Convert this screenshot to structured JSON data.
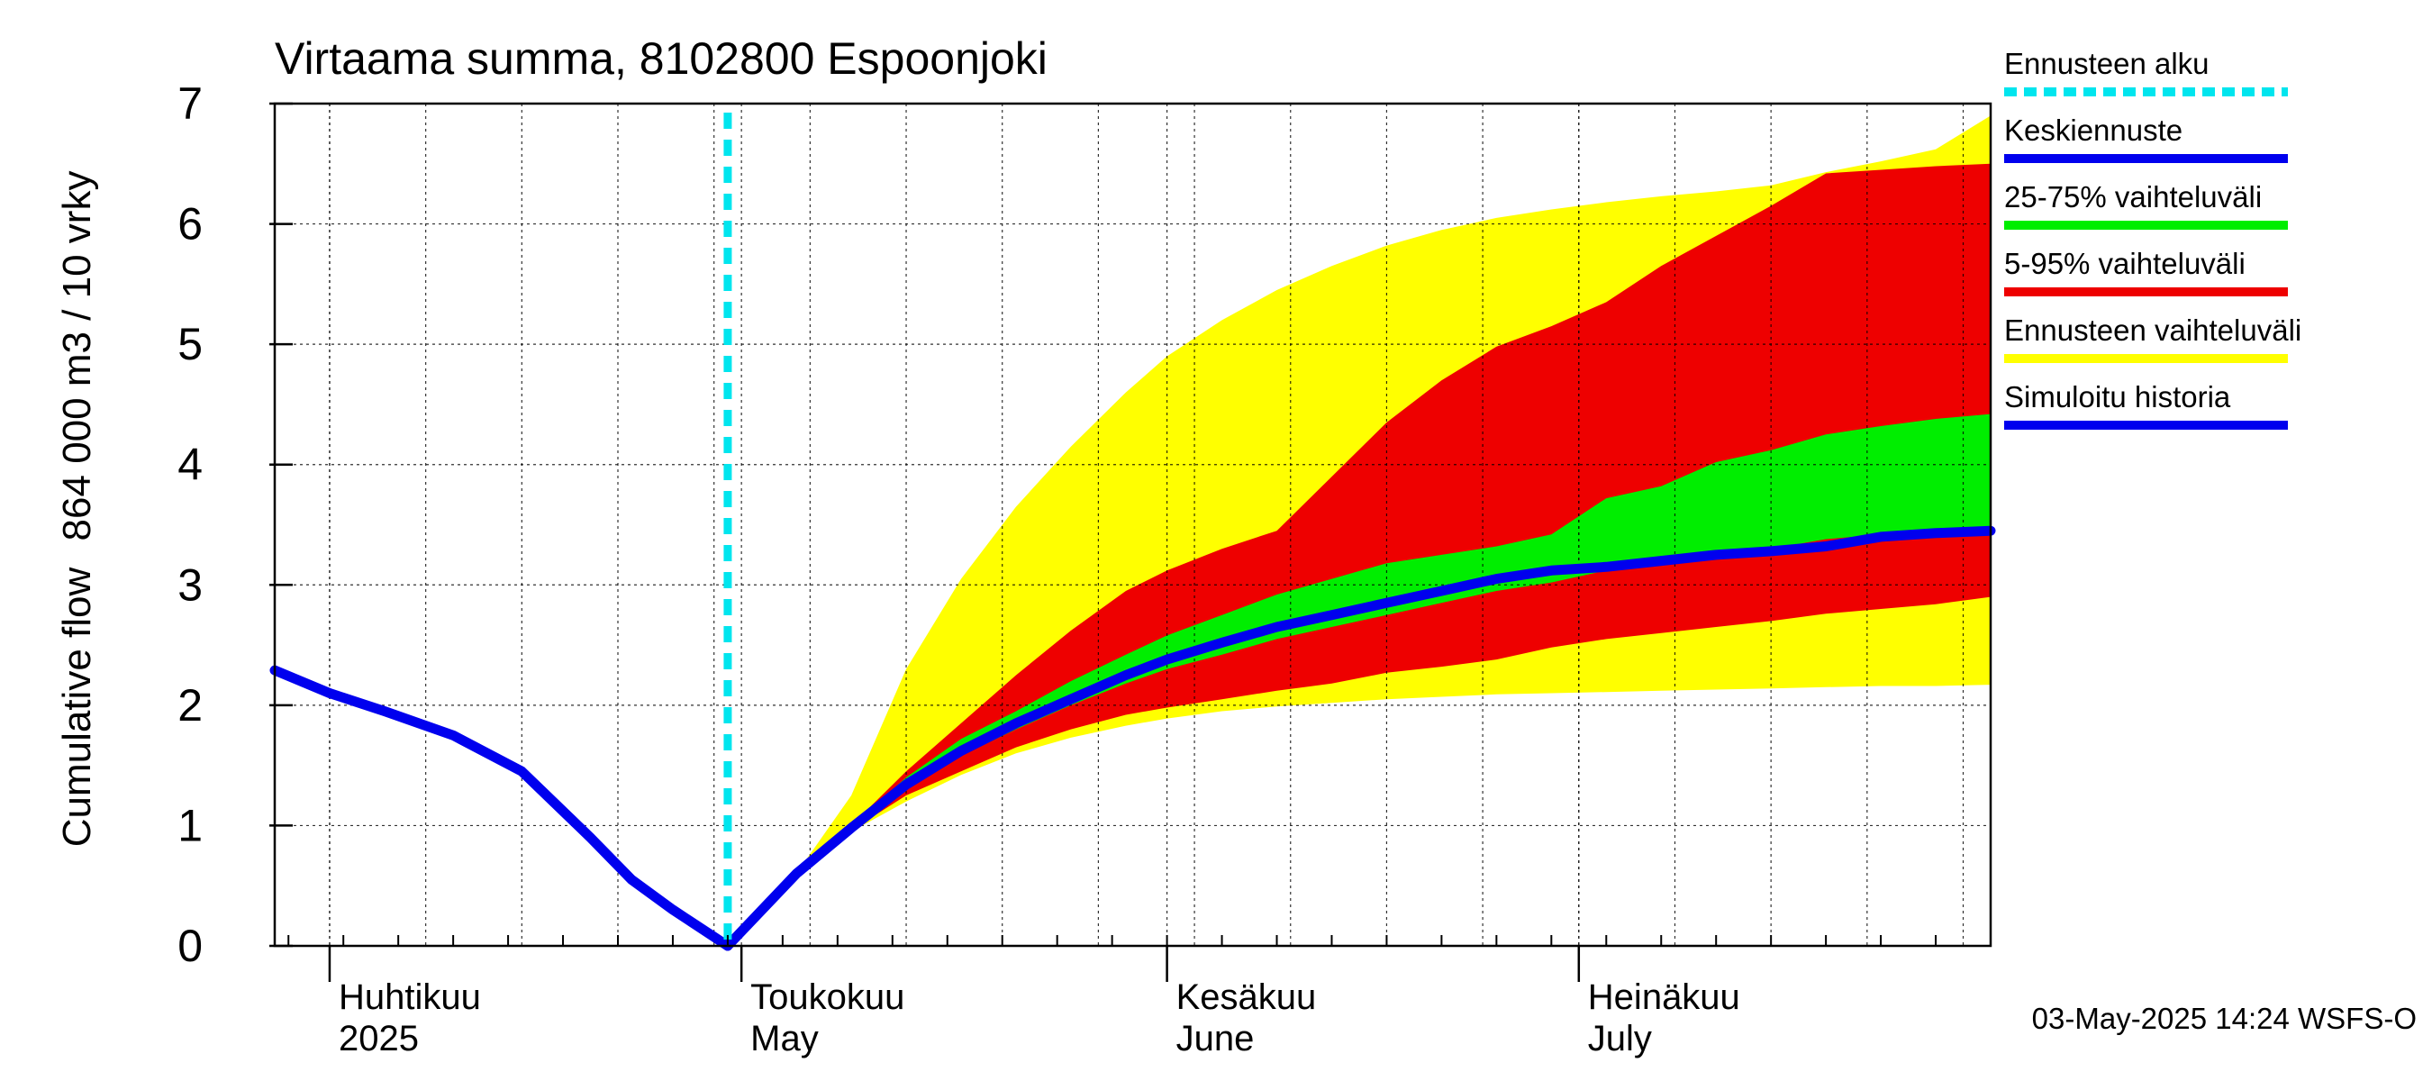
{
  "chart_data": {
    "type": "area",
    "title": "Virtaama summa, 8102800 Espoonjoki",
    "ylabel_left": "Cumulative flow",
    "ylabel_right": "864 000 m3 / 10 vrky",
    "ylim": [
      0,
      7
    ],
    "yticks": [
      "0",
      "1",
      "2",
      "3",
      "4",
      "5",
      "6",
      "7"
    ],
    "xlim": [
      "2025-03-28",
      "2025-07-31"
    ],
    "grid": true,
    "legend_position": "right",
    "month_labels": [
      {
        "fi": "Huhtikuu",
        "en": "2025",
        "date": "2025-04-01"
      },
      {
        "fi": "Toukokuu",
        "en": "May",
        "date": "2025-05-01"
      },
      {
        "fi": "Kesäkuu",
        "en": "June",
        "date": "2025-06-01"
      },
      {
        "fi": "Heinäkuu",
        "en": "July",
        "date": "2025-07-01"
      }
    ],
    "forecast_start": "2025-04-30",
    "footer": "03-May-2025 14:24 WSFS-O",
    "legend": [
      {
        "label": "Ennusteen alku",
        "color": "#00e5ee",
        "style": "dashed"
      },
      {
        "label": "Keskiennuste",
        "color": "#0000ee",
        "style": "solid"
      },
      {
        "label": "25-75% vaihteluväli",
        "color": "#00ee00",
        "style": "solid"
      },
      {
        "label": "5-95% vaihteluväli",
        "color": "#ee0000",
        "style": "solid"
      },
      {
        "label": "Ennusteen vaihteluväli",
        "color": "#ffff00",
        "style": "solid"
      },
      {
        "label": "Simuloitu historia",
        "color": "#0000ee",
        "style": "solid"
      }
    ],
    "colors": {
      "history": "#0000ee",
      "median": "#0000ee",
      "p25_75": "#00ee00",
      "p5_95": "#ee0000",
      "range": "#ffff00",
      "forecast_start": "#00e5ee"
    },
    "history": {
      "x": [
        "2025-03-28",
        "2025-04-01",
        "2025-04-05",
        "2025-04-10",
        "2025-04-15",
        "2025-04-20",
        "2025-04-23",
        "2025-04-26",
        "2025-04-30"
      ],
      "y": [
        2.29,
        2.1,
        1.95,
        1.75,
        1.45,
        0.9,
        0.55,
        0.3,
        0.0
      ]
    },
    "envelope_x": [
      "2025-04-30",
      "2025-05-05",
      "2025-05-09",
      "2025-05-13",
      "2025-05-17",
      "2025-05-21",
      "2025-05-25",
      "2025-05-29",
      "2025-06-01",
      "2025-06-05",
      "2025-06-09",
      "2025-06-13",
      "2025-06-17",
      "2025-06-21",
      "2025-06-25",
      "2025-06-29",
      "2025-07-03",
      "2025-07-07",
      "2025-07-11",
      "2025-07-15",
      "2025-07-19",
      "2025-07-23",
      "2025-07-27",
      "2025-07-31"
    ],
    "range_min": [
      0.0,
      0.6,
      0.95,
      1.2,
      1.42,
      1.6,
      1.73,
      1.83,
      1.89,
      1.95,
      1.99,
      2.02,
      2.05,
      2.07,
      2.09,
      2.1,
      2.11,
      2.12,
      2.13,
      2.14,
      2.15,
      2.16,
      2.16,
      2.17
    ],
    "range_max": [
      0.0,
      0.6,
      1.25,
      2.3,
      3.05,
      3.65,
      4.15,
      4.6,
      4.9,
      5.2,
      5.45,
      5.65,
      5.82,
      5.95,
      6.05,
      6.12,
      6.18,
      6.23,
      6.27,
      6.32,
      6.43,
      6.52,
      6.62,
      6.9
    ],
    "p5": [
      0.0,
      0.6,
      0.96,
      1.25,
      1.45,
      1.65,
      1.8,
      1.92,
      1.98,
      2.05,
      2.12,
      2.18,
      2.27,
      2.32,
      2.38,
      2.48,
      2.55,
      2.6,
      2.65,
      2.7,
      2.76,
      2.8,
      2.84,
      2.9
    ],
    "p95": [
      0.0,
      0.6,
      1.0,
      1.45,
      1.85,
      2.25,
      2.62,
      2.95,
      3.12,
      3.3,
      3.45,
      3.9,
      4.35,
      4.7,
      4.98,
      5.15,
      5.35,
      5.65,
      5.9,
      6.15,
      6.42,
      6.45,
      6.48,
      6.5
    ],
    "p25": [
      0.0,
      0.6,
      0.98,
      1.32,
      1.58,
      1.8,
      2.0,
      2.18,
      2.3,
      2.42,
      2.55,
      2.65,
      2.75,
      2.85,
      2.95,
      3.02,
      3.12,
      3.18,
      3.25,
      3.3,
      3.38,
      3.42,
      3.45,
      3.48
    ],
    "p75": [
      0.0,
      0.6,
      1.0,
      1.4,
      1.72,
      1.95,
      2.2,
      2.42,
      2.58,
      2.75,
      2.92,
      3.05,
      3.18,
      3.25,
      3.32,
      3.42,
      3.72,
      3.82,
      4.02,
      4.12,
      4.25,
      4.32,
      4.38,
      4.42
    ],
    "median": [
      0.0,
      0.6,
      0.98,
      1.34,
      1.62,
      1.85,
      2.05,
      2.25,
      2.38,
      2.52,
      2.65,
      2.75,
      2.85,
      2.95,
      3.05,
      3.12,
      3.15,
      3.2,
      3.25,
      3.28,
      3.32,
      3.4,
      3.43,
      3.45
    ]
  }
}
